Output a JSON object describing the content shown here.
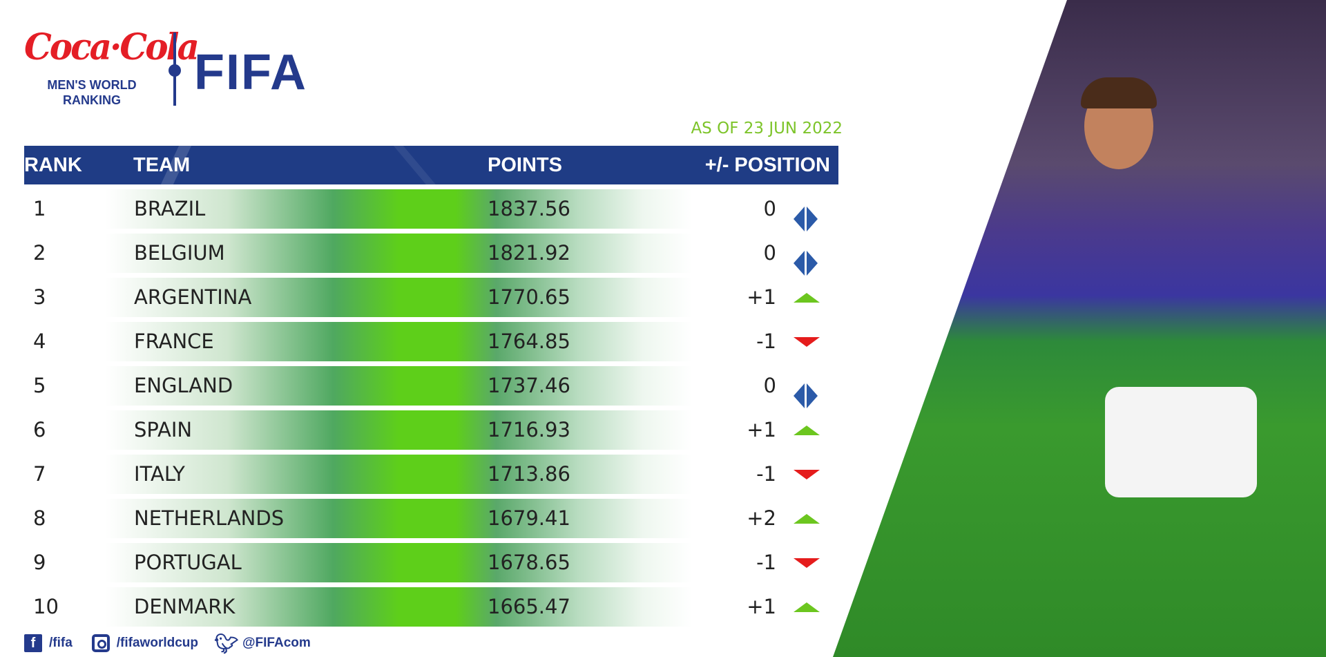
{
  "branding": {
    "sponsor_logo": "Coca-Cola",
    "subtitle_line1": "MEN'S WORLD",
    "subtitle_line2": "RANKING",
    "org_logo": "FIFA"
  },
  "as_of": "AS OF 23 JUN 2022",
  "table": {
    "columns": [
      "RANK",
      "TEAM",
      "POINTS",
      "+/- POSITION"
    ],
    "rows": [
      {
        "rank": "1",
        "team": "BRAZIL",
        "points": "1837.56",
        "change": "0",
        "trend": "same"
      },
      {
        "rank": "2",
        "team": "BELGIUM",
        "points": "1821.92",
        "change": "0",
        "trend": "same"
      },
      {
        "rank": "3",
        "team": "ARGENTINA",
        "points": "1770.65",
        "change": "+1",
        "trend": "up"
      },
      {
        "rank": "4",
        "team": "FRANCE",
        "points": "1764.85",
        "change": "-1",
        "trend": "down"
      },
      {
        "rank": "5",
        "team": "ENGLAND",
        "points": "1737.46",
        "change": "0",
        "trend": "same"
      },
      {
        "rank": "6",
        "team": "SPAIN",
        "points": "1716.93",
        "change": "+1",
        "trend": "up"
      },
      {
        "rank": "7",
        "team": "ITALY",
        "points": "1713.86",
        "change": "-1",
        "trend": "down"
      },
      {
        "rank": "8",
        "team": "NETHERLANDS",
        "points": "1679.41",
        "change": "+2",
        "trend": "up"
      },
      {
        "rank": "9",
        "team": "PORTUGAL",
        "points": "1678.65",
        "change": "-1",
        "trend": "down"
      },
      {
        "rank": "10",
        "team": "DENMARK",
        "points": "1665.47",
        "change": "+1",
        "trend": "up"
      }
    ]
  },
  "footer": {
    "facebook": "/fifa",
    "instagram": "/fifaworldcup",
    "twitter": "@FIFAcom"
  },
  "colors": {
    "brand_blue": "#1f3c85",
    "accent_green": "#7dc42a",
    "up": "#6cc61f",
    "down": "#e51c1c",
    "same": "#2b5aa8",
    "coke_red": "#e41e26"
  }
}
